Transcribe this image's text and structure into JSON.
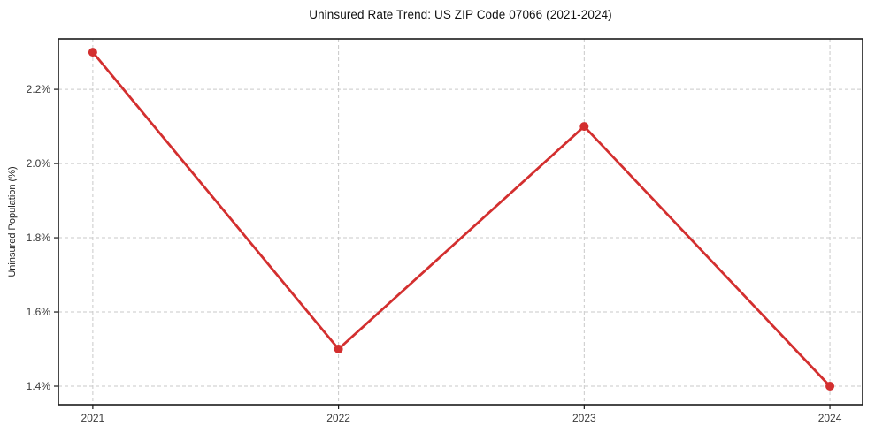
{
  "chart_data": {
    "type": "line",
    "title": "Uninsured Rate Trend: US ZIP Code 07066 (2021-2024)",
    "xlabel": "",
    "ylabel": "Uninsured Population (%)",
    "x": [
      2021,
      2022,
      2023,
      2024
    ],
    "x_labels": [
      "2021",
      "2022",
      "2023",
      "2024"
    ],
    "series": [
      {
        "name": "Uninsured rate",
        "values": [
          2.3,
          1.5,
          2.1,
          1.4
        ]
      }
    ],
    "yticks": [
      {
        "value": 1.4,
        "label": "1.4%"
      },
      {
        "value": 1.6,
        "label": "1.6%"
      },
      {
        "value": 1.8,
        "label": "1.8%"
      },
      {
        "value": 2.0,
        "label": "2.0%"
      },
      {
        "value": 2.2,
        "label": "2.2%"
      }
    ],
    "xlim": [
      2020.86,
      2024.133
    ],
    "ylim": [
      1.35,
      2.336
    ],
    "grid": true,
    "grid_style": "dashed",
    "legend": "none",
    "marker": "circle",
    "colors": {
      "line": "#d32f2f",
      "marker": "#d32f2f",
      "grid": "#c9c9c9",
      "axis": "#1a1a1a",
      "tick_label": "#3a3a3a",
      "title": "#111111",
      "background": "#ffffff"
    }
  }
}
